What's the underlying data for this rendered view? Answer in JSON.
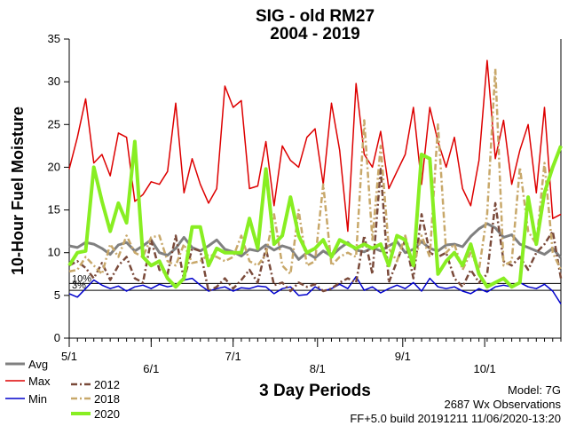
{
  "chart_data": {
    "type": "line",
    "title": "SIG - old RM27",
    "subtitle": "2004 - 2019",
    "ylabel": "10-Hour Fuel Moisture",
    "xlabel": "3 Day Periods",
    "ylim": [
      0,
      35
    ],
    "yticks": [
      0,
      5,
      10,
      15,
      20,
      25,
      30,
      35
    ],
    "xlim": [
      0,
      60
    ],
    "xticks": [
      {
        "x": 0,
        "label": "5/1"
      },
      {
        "x": 10,
        "label": "6/1"
      },
      {
        "x": 20,
        "label": "7/1"
      },
      {
        "x": 30.3,
        "label": "8/1"
      },
      {
        "x": 40.7,
        "label": "9/1"
      },
      {
        "x": 50.7,
        "label": "10/1"
      }
    ],
    "reference_lines": [
      {
        "label": "10%",
        "value": 6.4
      },
      {
        "label": "3%",
        "value": 5.6
      }
    ],
    "grid": false,
    "series": [
      {
        "name": "Avg",
        "color": "#808080",
        "style": "solid",
        "width": 3,
        "values": [
          10.8,
          10.6,
          11.2,
          11.0,
          10.5,
          9.8,
          10.9,
          11.2,
          10.2,
          10.8,
          11.5,
          10.0,
          9.7,
          10.5,
          11.8,
          10.6,
          10.2,
          10.8,
          11.5,
          10.4,
          10.1,
          9.6,
          10.4,
          10.2,
          10.9,
          10.3,
          10.8,
          10.5,
          9.2,
          10.0,
          9.4,
          10.2,
          9.6,
          10.5,
          11.2,
          10.3,
          10.1,
          10.6,
          10.2,
          10.8,
          11.3,
          10.0,
          10.4,
          11.3,
          10.5,
          10.2,
          10.9,
          11.0,
          10.7,
          11.9,
          12.8,
          13.4,
          12.9,
          11.8,
          12.1,
          11.0,
          10.6,
          10.2,
          9.8,
          10.5,
          9.4
        ]
      },
      {
        "name": "Max",
        "color": "#dd0000",
        "style": "solid",
        "width": 1.5,
        "values": [
          19.8,
          23.5,
          28.0,
          20.5,
          21.5,
          19.0,
          24.0,
          23.5,
          16.0,
          16.8,
          18.3,
          18.0,
          19.5,
          27.5,
          17.0,
          21.0,
          18.0,
          15.8,
          17.5,
          29.5,
          27.0,
          27.8,
          17.5,
          17.8,
          23.0,
          15.5,
          22.5,
          20.8,
          20.0,
          23.5,
          24.5,
          18.0,
          27.5,
          22.0,
          12.5,
          29.8,
          21.5,
          20.0,
          24.2,
          17.5,
          19.5,
          21.5,
          27.0,
          18.0,
          27.0,
          23.0,
          20.0,
          23.5,
          17.5,
          15.5,
          20.8,
          32.5,
          21.0,
          25.5,
          18.0,
          22.0,
          25.0,
          17.0,
          27.0,
          14.0,
          14.5
        ]
      },
      {
        "name": "Min",
        "color": "#0000cc",
        "style": "solid",
        "width": 1.5,
        "values": [
          5.2,
          4.8,
          5.8,
          6.8,
          6.2,
          5.8,
          6.1,
          5.5,
          6.0,
          6.2,
          5.8,
          6.3,
          6.0,
          6.2,
          6.8,
          7.0,
          6.2,
          5.5,
          5.8,
          6.0,
          5.5,
          5.9,
          5.8,
          6.1,
          6.0,
          5.2,
          5.8,
          6.0,
          5.0,
          5.1,
          6.0,
          5.5,
          5.8,
          6.3,
          5.8,
          7.2,
          5.6,
          6.0,
          5.3,
          5.8,
          6.2,
          5.8,
          6.5,
          5.5,
          7.0,
          6.0,
          5.8,
          6.0,
          5.5,
          5.2,
          5.8,
          5.4,
          6.0,
          6.2,
          6.0,
          6.5,
          6.0,
          5.8,
          6.3,
          5.5,
          4.0
        ]
      },
      {
        "name": "2012",
        "color": "#7a4a3a",
        "style": "dashdot",
        "width": 2.5,
        "values": [
          8.5,
          9.0,
          8.2,
          7.0,
          8.8,
          6.8,
          8.5,
          9.5,
          7.0,
          6.5,
          11.5,
          8.0,
          7.5,
          12.0,
          6.8,
          10.5,
          10.2,
          5.5,
          6.0,
          7.0,
          5.8,
          6.8,
          8.0,
          6.5,
          10.5,
          6.2,
          6.5,
          5.5,
          6.5,
          6.0,
          6.3,
          5.5,
          5.8,
          6.5,
          7.0,
          6.5,
          12.0,
          7.5,
          19.8,
          6.5,
          9.0,
          11.5,
          7.0,
          14.5,
          10.0,
          9.5,
          10.0,
          7.0,
          6.0,
          8.0,
          6.5,
          7.5,
          15.8,
          9.0,
          8.5,
          9.5,
          8.0,
          10.0,
          11.0,
          12.5,
          7.0
        ]
      },
      {
        "name": "2018",
        "color": "#c8a86a",
        "style": "dashdot",
        "width": 2.5,
        "values": [
          7.8,
          8.0,
          9.5,
          8.5,
          7.5,
          11.0,
          9.5,
          12.0,
          10.0,
          9.5,
          11.8,
          12.0,
          9.0,
          8.5,
          11.0,
          8.8,
          9.0,
          9.8,
          9.5,
          9.0,
          9.5,
          12.0,
          9.0,
          8.5,
          9.8,
          14.5,
          8.5,
          7.5,
          15.0,
          8.5,
          9.0,
          18.0,
          8.5,
          9.5,
          10.0,
          9.5,
          25.5,
          11.5,
          22.5,
          10.5,
          9.0,
          12.0,
          8.5,
          12.0,
          9.5,
          25.0,
          10.0,
          11.0,
          8.0,
          10.0,
          8.0,
          14.5,
          31.5,
          8.5,
          9.0,
          20.0,
          12.5,
          11.0,
          20.5,
          10.0,
          8.0
        ]
      },
      {
        "name": "2020",
        "color": "#88ee22",
        "style": "solid",
        "width": 4,
        "values": [
          8.5,
          10.0,
          10.2,
          20.0,
          16.0,
          12.5,
          15.8,
          13.5,
          23.0,
          9.5,
          8.5,
          9.0,
          7.0,
          6.0,
          7.0,
          13.0,
          13.0,
          8.5,
          10.5,
          10.0,
          10.0,
          10.0,
          14.0,
          10.5,
          19.8,
          11.0,
          12.0,
          16.5,
          12.0,
          10.0,
          10.5,
          11.5,
          9.5,
          11.5,
          11.0,
          10.5,
          11.0,
          10.5,
          11.0,
          8.5,
          12.0,
          11.5,
          8.5,
          21.5,
          21.0,
          7.5,
          9.0,
          10.0,
          8.5,
          11.0,
          7.5,
          6.0,
          6.5,
          7.0,
          6.0,
          6.5,
          16.5,
          11.0,
          17.0,
          20.0,
          22.5
        ]
      }
    ],
    "legend": [
      "Avg",
      "Max",
      "Min",
      "2012",
      "2018",
      "2020"
    ],
    "legend_placement": "bottom-left"
  },
  "footer": {
    "model": "Model: 7G",
    "observations": "2687 Wx Observations",
    "build": "FF+5.0 build 20191211 11/06/2020-13:20"
  }
}
